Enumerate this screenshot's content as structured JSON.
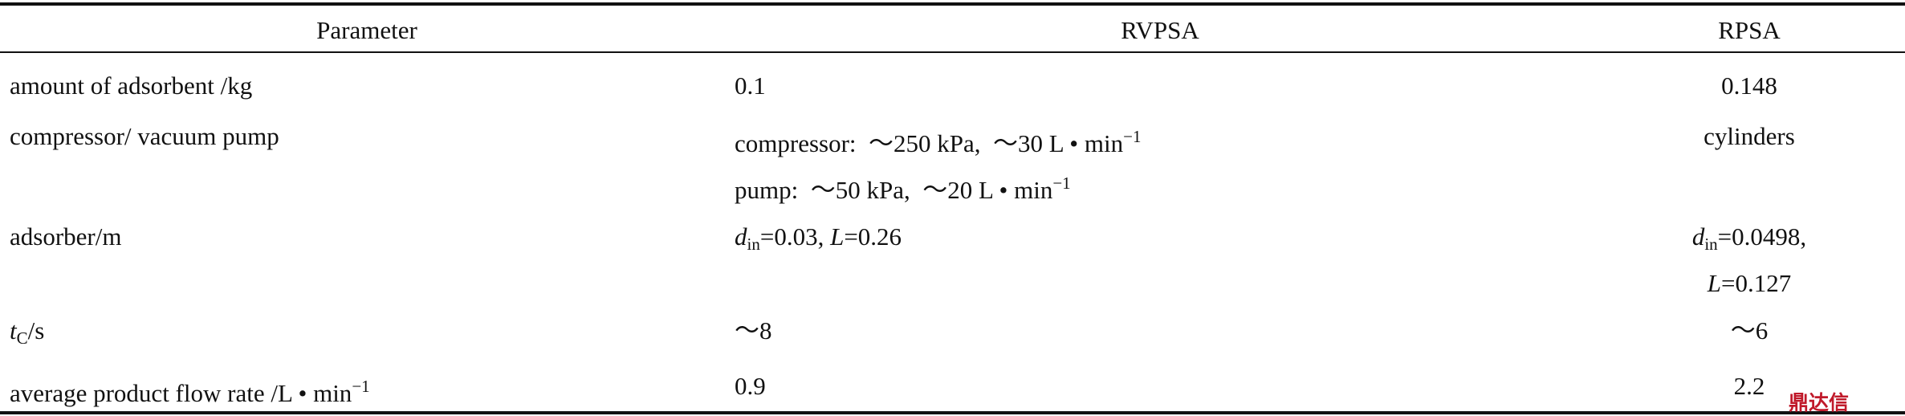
{
  "table": {
    "header": [
      "Parameter",
      "RVPSA",
      "RPSA"
    ],
    "rows": [
      [
        [
          [
            {
              "text": "amount of adsorbent /kg"
            }
          ]
        ],
        [
          [
            {
              "text": "0.1"
            }
          ]
        ],
        [
          [
            {
              "text": "0.148"
            }
          ]
        ]
      ],
      [
        [
          [
            {
              "text": "compressor/ vacuum pump"
            }
          ]
        ],
        [
          [
            {
              "text": "compressor:  ～250 kPa,  ～30 L • min"
            },
            {
              "text": "−1",
              "style": "sup"
            }
          ],
          [
            {
              "text": "pump:  ～50 kPa,  ～20 L • min"
            },
            {
              "text": "−1",
              "style": "sup"
            }
          ]
        ],
        [
          [
            {
              "text": "cylinders"
            }
          ]
        ]
      ],
      [
        [
          [
            {
              "text": "adsorber/m"
            }
          ]
        ],
        [
          [
            {
              "text": "d",
              "style": "italic"
            },
            {
              "text": "in",
              "style": "sub"
            },
            {
              "text": "=0.03, "
            },
            {
              "text": "L",
              "style": "italic"
            },
            {
              "text": "=0.26"
            }
          ]
        ],
        [
          [
            {
              "text": "d",
              "style": "italic"
            },
            {
              "text": "in",
              "style": "sub"
            },
            {
              "text": "=0.0498,"
            }
          ],
          [
            {
              "text": "L",
              "style": "italic"
            },
            {
              "text": "=0.127"
            }
          ]
        ]
      ],
      [
        [
          [
            {
              "text": "t",
              "style": "italic"
            },
            {
              "text": "C",
              "style": "sub"
            },
            {
              "text": "/s"
            }
          ]
        ],
        [
          [
            {
              "text": "～8"
            }
          ]
        ],
        [
          [
            {
              "text": "～6"
            }
          ]
        ]
      ],
      [
        [
          [
            {
              "text": "average product flow rate /L • min"
            },
            {
              "text": "−1",
              "style": "sup"
            }
          ]
        ],
        [
          [
            {
              "text": "0.9"
            }
          ]
        ],
        [
          [
            {
              "text": "2.2"
            }
          ]
        ]
      ]
    ]
  },
  "watermark": "鼎达信"
}
